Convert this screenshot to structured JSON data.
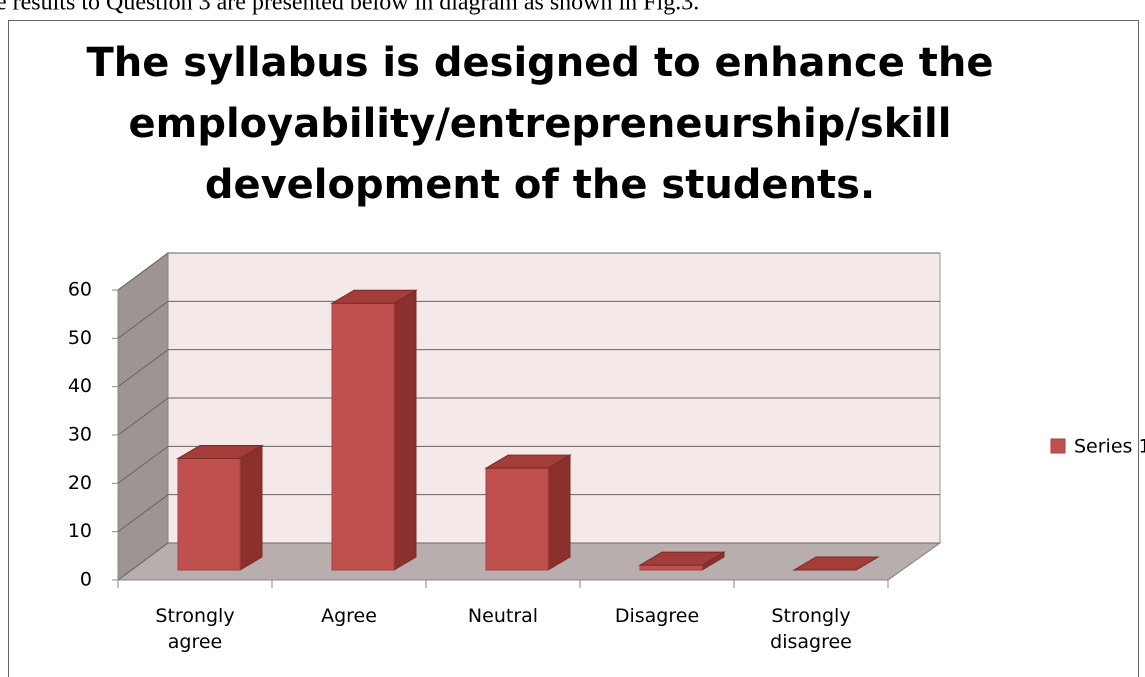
{
  "intro_text": "e results to Question 3 are presented below in diagram as shown in Fig.3.",
  "chart_data": {
    "type": "bar3d",
    "title": [
      "The syllabus is designed to enhance the",
      "employability/entrepreneurship/skill",
      "development of the students."
    ],
    "categories": [
      "Strongly agree",
      "Agree",
      "Neutral",
      "Disagree",
      "Strongly disagree"
    ],
    "series": [
      {
        "name": "Series 1",
        "color": "#c0504d",
        "values": [
          23,
          55,
          21,
          1,
          0
        ]
      }
    ],
    "ylim": [
      0,
      60
    ],
    "yticks": [
      0,
      10,
      20,
      30,
      40,
      50,
      60
    ],
    "grid": true,
    "legend": "right"
  }
}
